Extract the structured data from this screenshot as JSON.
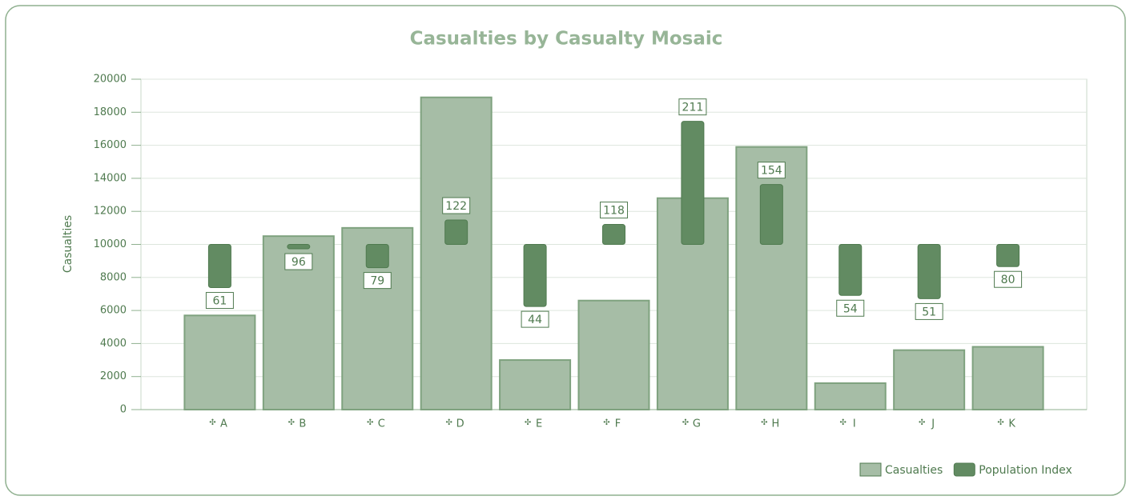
{
  "chart_data": {
    "type": "bar",
    "title": "Casualties by Casualty Mosaic",
    "y_label": "Casualties",
    "categories": [
      "A",
      "B",
      "C",
      "D",
      "E",
      "F",
      "G",
      "H",
      "I",
      "J",
      "K"
    ],
    "series": [
      {
        "name": "Casualties",
        "color": "#a6bda6",
        "values": [
          5700,
          10500,
          11000,
          18900,
          3000,
          6600,
          12800,
          15900,
          1600,
          3600,
          3800
        ]
      },
      {
        "name": "Population Index",
        "color": "#628b62",
        "axis": "y2",
        "base": 100,
        "values": [
          61,
          96,
          79,
          122,
          44,
          118,
          211,
          154,
          54,
          51,
          80
        ]
      }
    ],
    "ylim": [
      0,
      20000
    ],
    "yticks": [
      0,
      2000,
      4000,
      6000,
      8000,
      10000,
      12000,
      14000,
      16000,
      18000,
      20000
    ],
    "y2lim": [
      -49,
      249
    ],
    "grid": true,
    "legend": "bottom-right"
  }
}
